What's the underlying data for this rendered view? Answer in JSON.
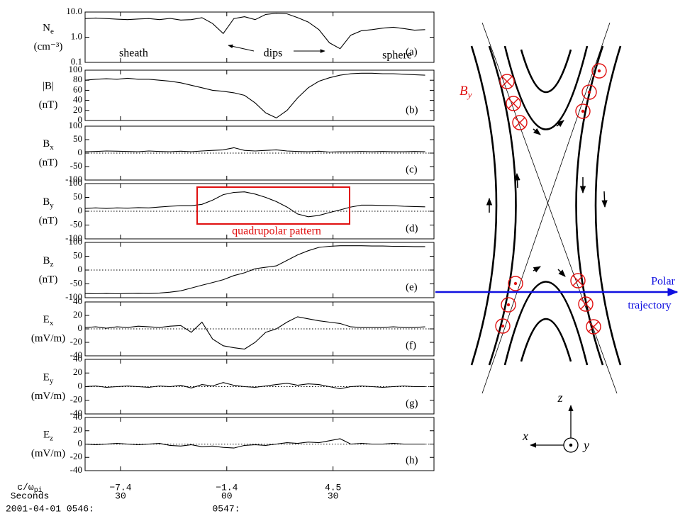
{
  "chart_data": [
    {
      "type": "line",
      "panel": "(a)",
      "ylabel": "N",
      "ylabel_sub": "e",
      "unit": "(cm⁻³)",
      "log": true,
      "ylim": [
        0.1,
        10
      ],
      "yticks": [
        0.1,
        {
          "value": 1,
          "label": "1.0"
        },
        {
          "value": 10,
          "label": "10.0"
        }
      ],
      "annotations": [
        "sheath",
        "dips",
        "sphere"
      ],
      "x": [
        20,
        23,
        26,
        29,
        32,
        35,
        38,
        41,
        44,
        47,
        50,
        53,
        56,
        59,
        62,
        65,
        68,
        71,
        74,
        77,
        80,
        83,
        86,
        89,
        92,
        95,
        98,
        101,
        104,
        107,
        110,
        113,
        116
      ],
      "series": [
        {
          "color": "#000000",
          "values": [
            5.5,
            5.8,
            5.5,
            5.2,
            5.0,
            5.3,
            5.5,
            5.0,
            5.6,
            4.8,
            5.0,
            6.0,
            3.5,
            1.4,
            5.5,
            6.5,
            5.0,
            8.0,
            9.0,
            8.5,
            6.0,
            4.0,
            2.0,
            0.6,
            0.35,
            1.2,
            1.8,
            2.0,
            2.3,
            2.5,
            2.2,
            1.9,
            2.0
          ]
        }
      ]
    },
    {
      "type": "line",
      "panel": "(b)",
      "ylabel": "|B|",
      "unit": "(nT)",
      "ylim": [
        0,
        100
      ],
      "yticks": [
        0,
        20,
        40,
        60,
        80,
        100
      ],
      "x": [
        20,
        23,
        26,
        29,
        32,
        35,
        38,
        41,
        44,
        47,
        50,
        53,
        56,
        59,
        62,
        65,
        68,
        71,
        74,
        77,
        80,
        83,
        86,
        89,
        92,
        95,
        98,
        101,
        104,
        107,
        110,
        113,
        116
      ],
      "series": [
        {
          "color": "#000000",
          "values": [
            80,
            82,
            83,
            82,
            84,
            82,
            82,
            80,
            78,
            75,
            70,
            65,
            60,
            58,
            55,
            50,
            35,
            15,
            5,
            20,
            45,
            65,
            78,
            85,
            90,
            93,
            94,
            94,
            93,
            93,
            92,
            91,
            90
          ]
        }
      ]
    },
    {
      "type": "line",
      "panel": "(c)",
      "ylabel": "B",
      "ylabel_sub": "x",
      "unit": "(nT)",
      "reference_line": 0,
      "ylim": [
        -100,
        100
      ],
      "yticks": [
        -100,
        -50,
        0,
        50,
        100
      ],
      "x": [
        20,
        23,
        26,
        29,
        32,
        35,
        38,
        41,
        44,
        47,
        50,
        53,
        56,
        59,
        62,
        65,
        68,
        71,
        74,
        77,
        80,
        83,
        86,
        89,
        92,
        95,
        98,
        101,
        104,
        107,
        110,
        113,
        116
      ],
      "series": [
        {
          "color": "#000000",
          "values": [
            5,
            6,
            8,
            7,
            6,
            5,
            8,
            6,
            5,
            7,
            5,
            8,
            10,
            12,
            20,
            10,
            8,
            10,
            12,
            8,
            6,
            5,
            7,
            4,
            5,
            5,
            6,
            5,
            6,
            5,
            5,
            6,
            5
          ]
        }
      ]
    },
    {
      "type": "line",
      "panel": "(d)",
      "ylabel": "B",
      "ylabel_sub": "y",
      "unit": "(nT)",
      "reference_line": 0,
      "ylim": [
        -100,
        100
      ],
      "yticks": [
        -100,
        -50,
        0,
        50,
        100
      ],
      "annotations": [
        "quadrupolar pattern"
      ],
      "x": [
        20,
        23,
        26,
        29,
        32,
        35,
        38,
        41,
        44,
        47,
        50,
        53,
        56,
        59,
        62,
        65,
        68,
        71,
        74,
        77,
        80,
        83,
        86,
        89,
        92,
        95,
        98,
        101,
        104,
        107,
        110,
        113,
        116
      ],
      "series": [
        {
          "color": "#000000",
          "values": [
            10,
            12,
            10,
            12,
            11,
            13,
            12,
            15,
            18,
            20,
            20,
            25,
            40,
            60,
            68,
            70,
            62,
            50,
            35,
            15,
            -10,
            -20,
            -15,
            -5,
            5,
            15,
            22,
            22,
            21,
            20,
            18,
            17,
            16
          ]
        }
      ]
    },
    {
      "type": "line",
      "panel": "(e)",
      "ylabel": "B",
      "ylabel_sub": "z",
      "unit": "(nT)",
      "reference_line": 0,
      "ylim": [
        -100,
        100
      ],
      "yticks": [
        -100,
        -50,
        0,
        50,
        100
      ],
      "x": [
        20,
        23,
        26,
        29,
        32,
        35,
        38,
        41,
        44,
        47,
        50,
        53,
        56,
        59,
        62,
        65,
        68,
        71,
        74,
        77,
        80,
        83,
        86,
        89,
        92,
        95,
        98,
        101,
        104,
        107,
        110,
        113,
        116
      ],
      "series": [
        {
          "color": "#000000",
          "values": [
            -85,
            -86,
            -85,
            -86,
            -85,
            -84,
            -85,
            -83,
            -80,
            -75,
            -65,
            -55,
            -45,
            -35,
            -20,
            -10,
            5,
            10,
            15,
            35,
            55,
            70,
            82,
            86,
            88,
            88,
            88,
            87,
            87,
            86,
            86,
            85,
            85
          ]
        }
      ]
    },
    {
      "type": "line",
      "panel": "(f)",
      "ylabel": "E",
      "ylabel_sub": "x",
      "unit": "(mV/m)",
      "reference_line": 0,
      "ylim": [
        -40,
        40
      ],
      "yticks": [
        -40,
        -20,
        0,
        20,
        40
      ],
      "x": [
        20,
        23,
        26,
        29,
        32,
        35,
        38,
        41,
        44,
        47,
        50,
        53,
        56,
        59,
        62,
        65,
        68,
        71,
        74,
        77,
        80,
        83,
        86,
        89,
        92,
        95,
        98,
        101,
        104,
        107,
        110,
        113,
        116
      ],
      "series": [
        {
          "color": "#000000",
          "values": [
            2,
            3,
            1,
            3,
            2,
            4,
            3,
            2,
            4,
            5,
            -5,
            10,
            -15,
            -25,
            -28,
            -30,
            -20,
            -5,
            0,
            10,
            18,
            15,
            12,
            10,
            8,
            3,
            2,
            2,
            2,
            3,
            2,
            2,
            3
          ]
        }
      ]
    },
    {
      "type": "line",
      "panel": "(g)",
      "ylabel": "E",
      "ylabel_sub": "y",
      "unit": "(mV/m)",
      "reference_line": 0,
      "ylim": [
        -40,
        40
      ],
      "yticks": [
        -40,
        -20,
        0,
        20,
        40
      ],
      "x": [
        20,
        23,
        26,
        29,
        32,
        35,
        38,
        41,
        44,
        47,
        50,
        53,
        56,
        59,
        62,
        65,
        68,
        71,
        74,
        77,
        80,
        83,
        86,
        89,
        92,
        95,
        98,
        101,
        104,
        107,
        110,
        113,
        116
      ],
      "series": [
        {
          "color": "#000000",
          "values": [
            0,
            1,
            -1,
            0,
            1,
            0,
            -1,
            1,
            0,
            2,
            -2,
            3,
            1,
            6,
            2,
            0,
            -1,
            1,
            3,
            5,
            2,
            4,
            3,
            0,
            -3,
            0,
            1,
            0,
            -1,
            0,
            1,
            0,
            0
          ]
        }
      ]
    },
    {
      "type": "line",
      "panel": "(h)",
      "ylabel": "E",
      "ylabel_sub": "z",
      "unit": "(mV/m)",
      "reference_line": 0,
      "ylim": [
        -40,
        40
      ],
      "yticks": [
        -40,
        -20,
        0,
        20,
        40
      ],
      "x": [
        20,
        23,
        26,
        29,
        32,
        35,
        38,
        41,
        44,
        47,
        50,
        53,
        56,
        59,
        62,
        65,
        68,
        71,
        74,
        77,
        80,
        83,
        86,
        89,
        92,
        95,
        98,
        101,
        104,
        107,
        110,
        113,
        116
      ],
      "series": [
        {
          "color": "#000000",
          "values": [
            0,
            -1,
            0,
            1,
            0,
            -1,
            0,
            1,
            -2,
            -3,
            -1,
            -4,
            -3,
            -5,
            -6,
            -2,
            -1,
            -2,
            0,
            2,
            1,
            3,
            2,
            5,
            8,
            0,
            1,
            0,
            0,
            1,
            0,
            0,
            0
          ]
        }
      ]
    }
  ],
  "time_axis": {
    "xlim": [
      20,
      118.5
    ],
    "ticks": [
      30,
      {
        "value": 60,
        "label": "00"
      },
      {
        "value": 90,
        "label": "30"
      }
    ],
    "norm_ticks": [
      {
        "value": 30,
        "label": "−7.4"
      },
      {
        "value": 60,
        "label": "−1.4"
      },
      {
        "value": 90,
        "label": "4.5"
      }
    ],
    "norm_label": "c/ω",
    "norm_label_sub": "pi",
    "label": "Seconds",
    "date_labels": [
      "2001-04-01 0546:",
      "0547:"
    ]
  },
  "diagram": {
    "field_label": "B",
    "field_label_sub": "y",
    "trajectory": [
      "Polar",
      "trajectory"
    ],
    "axes": [
      "z",
      "x",
      "y"
    ]
  }
}
